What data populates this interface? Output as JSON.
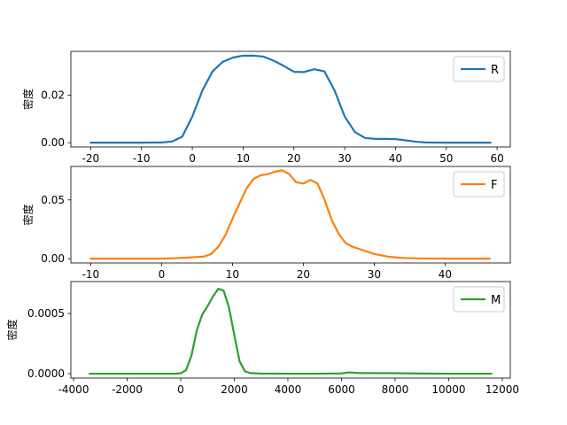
{
  "chart_data": [
    {
      "type": "line",
      "ylabel": "密度",
      "legend": "top-right",
      "grid": false,
      "xlim": [
        -23.9,
        62.6
      ],
      "ylim": [
        -0.0018,
        0.0384
      ],
      "xticks": [
        "-20",
        "-10",
        "0",
        "10",
        "20",
        "30",
        "40",
        "50",
        "60"
      ],
      "yticks": [
        "0.00",
        "0.02"
      ],
      "series": [
        {
          "name": "R",
          "color": "#1f77b4",
          "x": [
            -20,
            -10,
            -6,
            -4,
            -2,
            0,
            2,
            4,
            6,
            8,
            10,
            12,
            14,
            16,
            18,
            20,
            22,
            24,
            26,
            28,
            30,
            32,
            34,
            36,
            38,
            40,
            42,
            44,
            46,
            50,
            58.7
          ],
          "y": [
            0.0,
            0.0,
            0.0001,
            0.0005,
            0.0025,
            0.011,
            0.022,
            0.03,
            0.034,
            0.0358,
            0.0366,
            0.0366,
            0.0362,
            0.0345,
            0.0323,
            0.0298,
            0.0297,
            0.0309,
            0.03,
            0.022,
            0.011,
            0.0045,
            0.002,
            0.0016,
            0.0016,
            0.0015,
            0.001,
            0.0004,
            0.0001,
            0.0,
            0.0
          ]
        }
      ]
    },
    {
      "type": "line",
      "ylabel": "密度",
      "legend": "top-right",
      "grid": false,
      "xlim": [
        -12.8,
        49.2
      ],
      "ylim": [
        -0.0037,
        0.0785
      ],
      "xticks": [
        "-10",
        "0",
        "10",
        "20",
        "30",
        "40"
      ],
      "yticks": [
        "0.00",
        "0.05"
      ],
      "series": [
        {
          "name": "F",
          "color": "#ff7f0e",
          "x": [
            -10,
            0,
            2,
            4,
            6,
            7,
            8,
            9,
            10,
            11,
            12,
            13,
            14,
            15,
            16,
            17,
            18,
            19,
            20,
            21,
            22,
            23,
            24,
            25,
            26,
            27,
            28,
            30,
            32,
            34,
            36,
            40,
            46.3
          ],
          "y": [
            0.0,
            0.0,
            0.0004,
            0.001,
            0.0018,
            0.004,
            0.01,
            0.02,
            0.034,
            0.047,
            0.06,
            0.068,
            0.071,
            0.072,
            0.074,
            0.0752,
            0.072,
            0.065,
            0.064,
            0.067,
            0.064,
            0.05,
            0.033,
            0.021,
            0.013,
            0.01,
            0.008,
            0.004,
            0.0016,
            0.0006,
            0.0002,
            0.0,
            0.0
          ]
        }
      ]
    },
    {
      "type": "line",
      "ylabel": "密度",
      "legend": "top-right",
      "grid": false,
      "xlim": [
        -4100,
        12300
      ],
      "ylim": [
        -3.65e-05,
        0.000765
      ],
      "xticks": [
        "-4000",
        "-2000",
        "0",
        "2000",
        "4000",
        "6000",
        "8000",
        "10000",
        "12000"
      ],
      "yticks": [
        "0.0000",
        "0.0005"
      ],
      "series": [
        {
          "name": "M",
          "color": "#2ca02c",
          "x": [
            -3400,
            -1000,
            -200,
            0,
            200,
            400,
            600,
            800,
            1000,
            1200,
            1400,
            1600,
            1800,
            2000,
            2200,
            2400,
            2600,
            3000,
            4000,
            5000,
            6000,
            6300,
            6600,
            7000,
            8000,
            9000,
            10000,
            11600
          ],
          "y": [
            0.0,
            0.0,
            0.0,
            3e-06,
            3e-05,
            0.00015,
            0.00036,
            0.00049,
            0.00056,
            0.00064,
            0.000705,
            0.00069,
            0.00055,
            0.00032,
            0.0001,
            2e-05,
            5e-06,
            1e-06,
            0.0,
            0.0,
            2e-06,
            1.1e-05,
            6e-06,
            5e-06,
            4e-06,
            1e-06,
            0.0,
            0.0
          ]
        }
      ]
    }
  ]
}
